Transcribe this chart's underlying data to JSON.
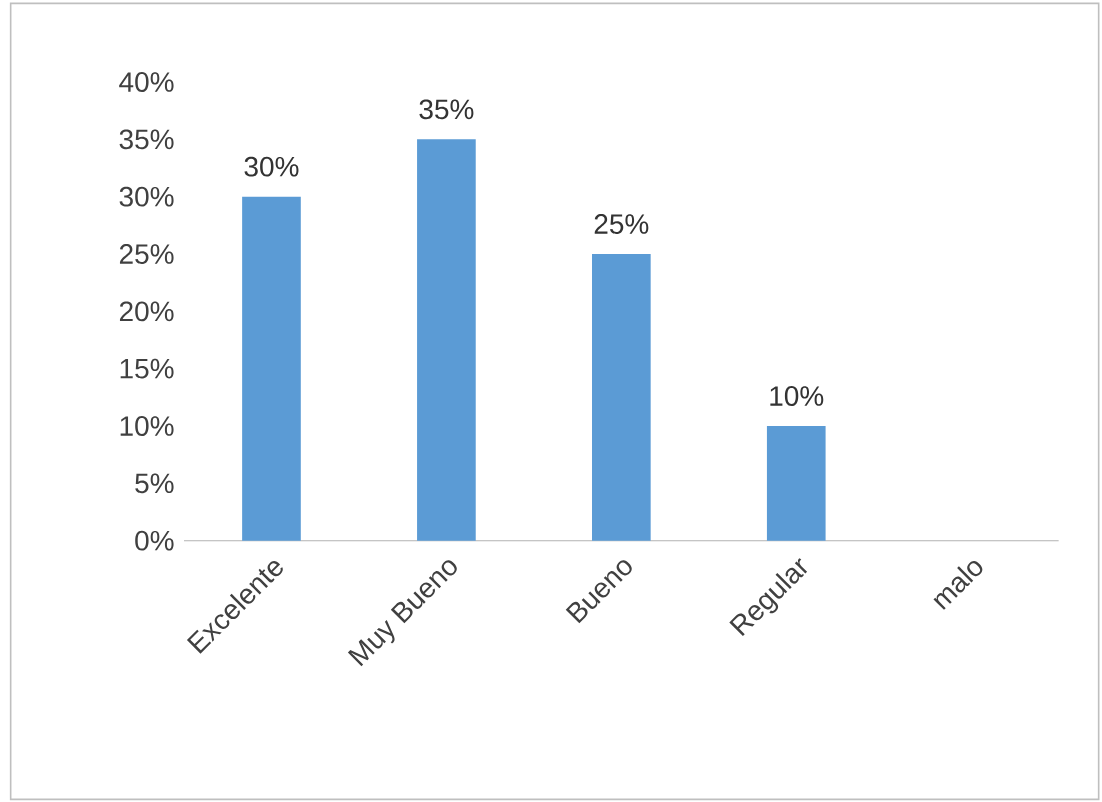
{
  "chart_data": {
    "type": "bar",
    "categories": [
      "Excelente",
      "Muy  Bueno",
      "Bueno",
      "Regular",
      "malo"
    ],
    "values": [
      30,
      35,
      25,
      10,
      0
    ],
    "color": "#5b9bd5",
    "value_labels": [
      "30%",
      "35%",
      "25%",
      "10%",
      null
    ],
    "ylim": [
      0,
      40
    ],
    "yticks": [
      {
        "value": 0,
        "label": "0%"
      },
      {
        "value": 5,
        "label": "5%"
      },
      {
        "value": 10,
        "label": "10%"
      },
      {
        "value": 15,
        "label": "15%"
      },
      {
        "value": 20,
        "label": "20%"
      },
      {
        "value": 25,
        "label": "25%"
      },
      {
        "value": 30,
        "label": "30%"
      },
      {
        "value": 35,
        "label": "35%"
      },
      {
        "value": 40,
        "label": "40%"
      }
    ],
    "grid": false
  }
}
